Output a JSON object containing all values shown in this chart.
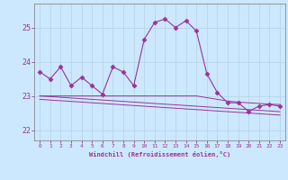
{
  "xlabel": "Windchill (Refroidissement éolien,°C)",
  "x_hours": [
    0,
    1,
    2,
    3,
    4,
    5,
    6,
    7,
    8,
    9,
    10,
    11,
    12,
    13,
    14,
    15,
    16,
    17,
    18,
    19,
    20,
    21,
    22,
    23
  ],
  "main_line": [
    23.7,
    23.5,
    23.85,
    23.3,
    23.55,
    23.3,
    23.05,
    23.85,
    23.7,
    23.3,
    24.65,
    25.15,
    25.25,
    25.0,
    25.2,
    24.9,
    23.65,
    23.1,
    22.8,
    22.8,
    22.55,
    22.7,
    22.75,
    22.7
  ],
  "line_flat1": [
    23.0,
    23.0,
    23.0,
    23.0,
    23.0,
    23.0,
    23.0,
    23.0,
    23.0,
    23.0,
    23.0,
    23.0,
    23.0,
    23.0,
    23.0,
    23.0,
    22.95,
    22.9,
    22.85,
    22.82,
    22.8,
    22.78,
    22.76,
    22.75
  ],
  "line_flat2": [
    22.9,
    22.88,
    22.86,
    22.84,
    22.82,
    22.8,
    22.78,
    22.76,
    22.74,
    22.72,
    22.7,
    22.68,
    22.66,
    22.64,
    22.62,
    22.6,
    22.58,
    22.56,
    22.54,
    22.52,
    22.5,
    22.48,
    22.46,
    22.44
  ],
  "line_flat3": [
    23.0,
    22.98,
    22.96,
    22.94,
    22.92,
    22.9,
    22.88,
    22.86,
    22.84,
    22.82,
    22.8,
    22.78,
    22.76,
    22.74,
    22.72,
    22.7,
    22.68,
    22.66,
    22.64,
    22.62,
    22.6,
    22.58,
    22.56,
    22.54
  ],
  "line_color": "#993399",
  "bg_color": "#cce8ff",
  "grid_color": "#aaccee",
  "ylim": [
    21.7,
    25.7
  ],
  "yticks": [
    22,
    23,
    24,
    25
  ],
  "xticks": [
    0,
    1,
    2,
    3,
    4,
    5,
    6,
    7,
    8,
    9,
    10,
    11,
    12,
    13,
    14,
    15,
    16,
    17,
    18,
    19,
    20,
    21,
    22,
    23
  ]
}
